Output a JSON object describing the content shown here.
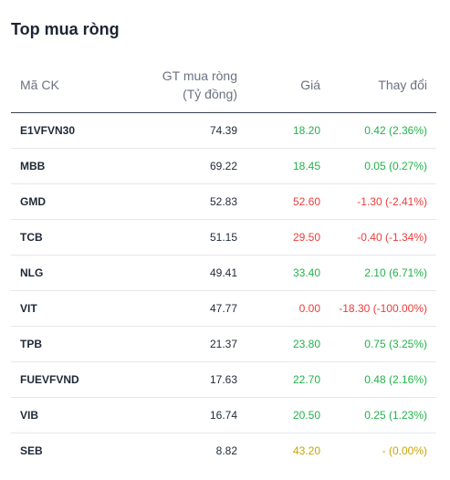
{
  "widget": {
    "title": "Top mua ròng"
  },
  "table": {
    "headers": {
      "symbol": "Mã CK",
      "value_line1": "GT mua ròng",
      "value_line2": "(Tỷ đồng)",
      "price": "Giá",
      "change": "Thay đổi"
    },
    "rows": [
      {
        "symbol": "E1VFVN30",
        "value": "74.39",
        "price": "18.20",
        "change": "0.42 (2.36%)",
        "trend": "up"
      },
      {
        "symbol": "MBB",
        "value": "69.22",
        "price": "18.45",
        "change": "0.05 (0.27%)",
        "trend": "up"
      },
      {
        "symbol": "GMD",
        "value": "52.83",
        "price": "52.60",
        "change": "-1.30 (-2.41%)",
        "trend": "down"
      },
      {
        "symbol": "TCB",
        "value": "51.15",
        "price": "29.50",
        "change": "-0.40 (-1.34%)",
        "trend": "down"
      },
      {
        "symbol": "NLG",
        "value": "49.41",
        "price": "33.40",
        "change": "2.10 (6.71%)",
        "trend": "up"
      },
      {
        "symbol": "VIT",
        "value": "47.77",
        "price": "0.00",
        "change": "-18.30 (-100.00%)",
        "trend": "down"
      },
      {
        "symbol": "TPB",
        "value": "21.37",
        "price": "23.80",
        "change": "0.75 (3.25%)",
        "trend": "up"
      },
      {
        "symbol": "FUEVFVND",
        "value": "17.63",
        "price": "22.70",
        "change": "0.48 (2.16%)",
        "trend": "up"
      },
      {
        "symbol": "VIB",
        "value": "16.74",
        "price": "20.50",
        "change": "0.25 (1.23%)",
        "trend": "up"
      },
      {
        "symbol": "SEB",
        "value": "8.82",
        "price": "43.20",
        "change": "- (0.00%)",
        "trend": "ref"
      }
    ]
  },
  "colors": {
    "up": "#22b34a",
    "down": "#ef3b3b",
    "ref": "#c9a400"
  }
}
